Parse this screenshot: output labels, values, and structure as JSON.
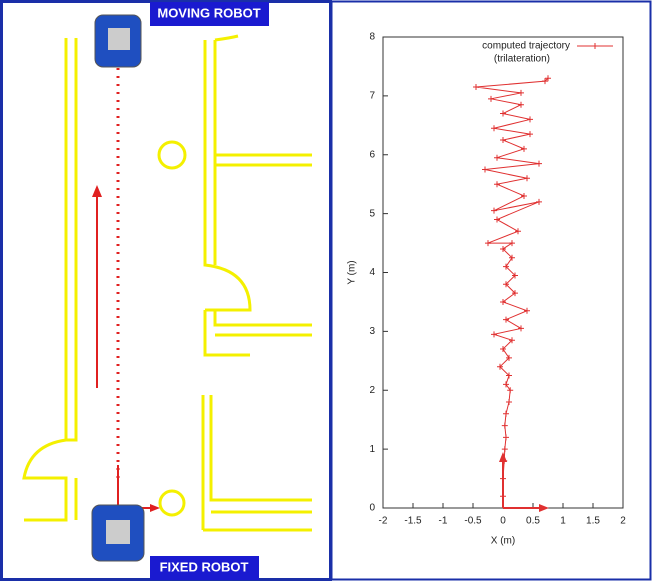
{
  "diagram": {
    "moving_label": "MOVING ROBOT",
    "fixed_label": "FIXED ROBOT"
  },
  "chart_data": {
    "type": "line",
    "xlabel": "X (m)",
    "ylabel": "Y (m)",
    "xlim": [
      -2,
      2
    ],
    "ylim": [
      0,
      8
    ],
    "xticks": [
      -2,
      -1.5,
      -1,
      -0.5,
      0,
      0.5,
      1,
      1.5,
      2
    ],
    "yticks": [
      0,
      1,
      2,
      3,
      4,
      5,
      6,
      7,
      8
    ],
    "legend": "top-right",
    "legend_note": "(trilateration)",
    "series": [
      {
        "name": "computed trajectory",
        "color": "#e03030",
        "x": [
          0,
          0,
          0.02,
          0.03,
          0.05,
          0.03,
          0.05,
          0.1,
          0.12,
          0.05,
          0.1,
          -0.05,
          0.1,
          0,
          0.15,
          -0.15,
          0.3,
          0.05,
          0.4,
          0,
          0.2,
          0.05,
          0.2,
          0.05,
          0.15,
          0,
          0.15,
          -0.25,
          0.25,
          -0.1,
          0.6,
          -0.15,
          0.35,
          -0.1,
          0.4,
          -0.3,
          0.6,
          -0.1,
          0.35,
          0,
          0.45,
          -0.15,
          0.45,
          0,
          0.3,
          -0.2,
          0.3,
          -0.45,
          0.7,
          0.75
        ],
        "values": [
          0.2,
          0.5,
          0.8,
          1,
          1.2,
          1.4,
          1.6,
          1.8,
          2,
          2.1,
          2.25,
          2.4,
          2.55,
          2.7,
          2.85,
          2.95,
          3.05,
          3.2,
          3.35,
          3.5,
          3.65,
          3.8,
          3.95,
          4.1,
          4.25,
          4.4,
          4.5,
          4.5,
          4.7,
          4.9,
          5.2,
          5.05,
          5.3,
          5.5,
          5.6,
          5.75,
          5.85,
          5.95,
          6.1,
          6.25,
          6.35,
          6.45,
          6.6,
          6.7,
          6.85,
          6.95,
          7.05,
          7.15,
          7.25,
          7.3
        ]
      }
    ]
  }
}
